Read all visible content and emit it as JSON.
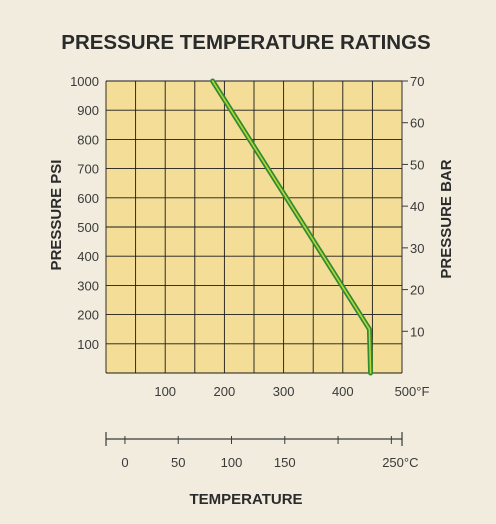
{
  "chart_data": {
    "type": "line",
    "title": "PRESSURE TEMPERATURE RATINGS",
    "xlabel": "TEMPERATURE",
    "ylabel": "PRESSURE PSI",
    "ylabel_right": "PRESSURE BAR",
    "x_unit_f": "°F",
    "x_unit_c": "°C",
    "xlim_f": [
      0,
      500
    ],
    "ylim_psi": [
      0,
      1000
    ],
    "ylim_bar": [
      0,
      70
    ],
    "x_ticks_f": [
      100,
      200,
      300,
      400,
      500
    ],
    "x_ticks_c": [
      0,
      50,
      100,
      150,
      250
    ],
    "y_ticks_psi": [
      100,
      200,
      300,
      400,
      500,
      600,
      700,
      800,
      900,
      1000
    ],
    "y_ticks_bar": [
      10,
      20,
      30,
      40,
      50,
      60,
      70
    ],
    "grid": true,
    "series": [
      {
        "x": [
          180,
          445,
          447
        ],
        "y": [
          1000,
          150,
          0
        ]
      }
    ],
    "colors": {
      "plot_bg": "#f3dd97",
      "line": "#2e8b34",
      "line_highlight": "#c9dc3a",
      "grid": "#1a1a1a",
      "page_bg": "#f1ecdd"
    }
  }
}
